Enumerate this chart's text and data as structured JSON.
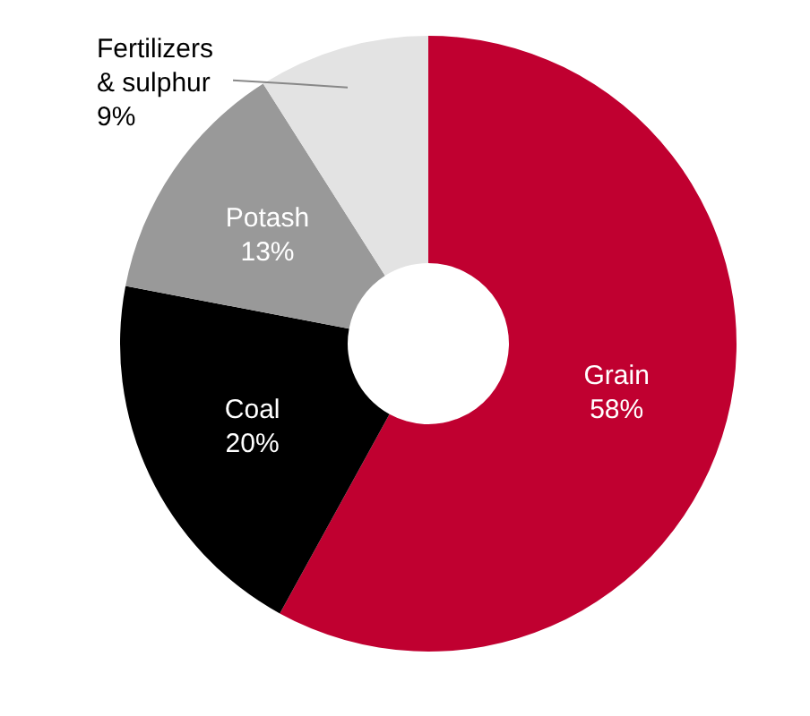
{
  "chart_data": {
    "type": "donut",
    "categories": [
      "Grain",
      "Coal",
      "Potash",
      "Fertilizers & sulphur"
    ],
    "values": [
      58,
      20,
      13,
      9
    ],
    "value_labels": [
      "58%",
      "20%",
      "13%",
      "9%"
    ],
    "colors": [
      "#c00030",
      "#000000",
      "#999999",
      "#e3e3e3"
    ]
  }
}
